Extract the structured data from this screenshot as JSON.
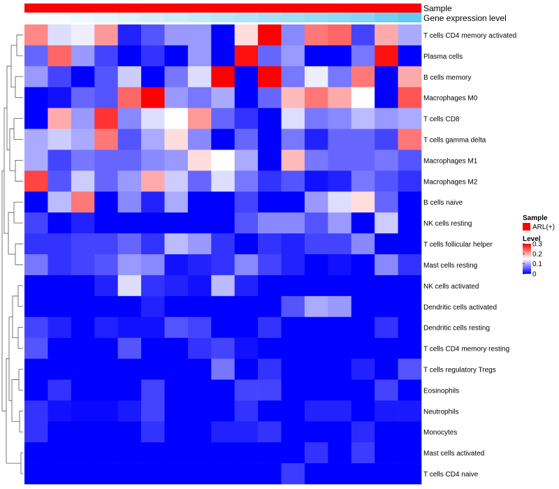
{
  "chart_data": {
    "type": "heatmap",
    "annotation_tracks": [
      "Sample",
      "Gene expression level"
    ],
    "rows": [
      "T cells CD4 memory activated",
      "Plasma cells",
      "B cells memory",
      "Macrophages M0",
      "T cells CD8",
      "T cells gamma delta",
      "Macrophages M1",
      "Macrophages M2",
      "B cells naive",
      "NK cells resting",
      "T cells follicular helper",
      "Mast cells resting",
      "NK cells activated",
      "Dendritic cells activated",
      "Dendritic cells resting",
      "T cells CD4 memory resting",
      "T cells regulatory  Tregs",
      "Eosinophils",
      "Neutrophils",
      "Monocytes",
      "Mast cells activated",
      "T cells CD4 naive"
    ],
    "n_columns": 17,
    "values": [
      [
        0.22,
        0.13,
        0.14,
        0.21,
        0.02,
        0.05,
        0.09,
        0.09,
        0.0,
        0.17,
        0.3,
        0.08,
        0.23,
        0.24,
        0.04,
        0.2,
        0.1
      ],
      [
        0.06,
        0.24,
        0.09,
        0.04,
        0.0,
        0.03,
        0.0,
        0.09,
        0.0,
        0.29,
        0.06,
        0.09,
        0.0,
        0.0,
        0.07,
        0.29,
        0.0
      ],
      [
        0.09,
        0.04,
        0.0,
        0.05,
        0.12,
        0.0,
        0.07,
        0.13,
        0.3,
        0.0,
        0.3,
        0.07,
        0.14,
        0.07,
        0.23,
        0.0,
        0.2
      ],
      [
        0.0,
        0.01,
        0.06,
        0.05,
        0.24,
        0.3,
        0.09,
        0.07,
        0.1,
        0.0,
        0.06,
        0.19,
        0.23,
        0.2,
        0.15,
        0.0,
        0.25
      ],
      [
        0.0,
        0.2,
        0.09,
        0.27,
        0.08,
        0.13,
        0.15,
        0.21,
        0.06,
        0.03,
        0.0,
        0.13,
        0.07,
        0.08,
        0.11,
        0.09,
        0.1
      ],
      [
        0.1,
        0.12,
        0.1,
        0.23,
        0.05,
        0.1,
        0.17,
        0.08,
        0.0,
        0.06,
        0.0,
        0.07,
        0.02,
        0.06,
        0.06,
        0.04,
        0.23
      ],
      [
        0.1,
        0.04,
        0.07,
        0.06,
        0.06,
        0.08,
        0.09,
        0.17,
        0.15,
        0.1,
        0.0,
        0.19,
        0.07,
        0.06,
        0.06,
        0.07,
        0.05
      ],
      [
        0.26,
        0.05,
        0.12,
        0.06,
        0.09,
        0.2,
        0.12,
        0.06,
        0.13,
        0.07,
        0.03,
        0.05,
        0.01,
        0.02,
        0.07,
        0.05,
        0.03
      ],
      [
        0.0,
        0.11,
        0.23,
        0.0,
        0.08,
        0.02,
        0.1,
        0.0,
        0.0,
        0.04,
        0.0,
        0.0,
        0.09,
        0.13,
        0.17,
        0.06,
        0.0
      ],
      [
        0.04,
        0.0,
        0.02,
        0.0,
        0.0,
        0.0,
        0.0,
        0.0,
        0.0,
        0.05,
        0.08,
        0.08,
        0.05,
        0.09,
        0.0,
        0.12,
        0.0
      ],
      [
        0.03,
        0.03,
        0.04,
        0.04,
        0.06,
        0.03,
        0.11,
        0.09,
        0.03,
        0.0,
        0.03,
        0.02,
        0.04,
        0.04,
        0.08,
        0.0,
        0.0
      ],
      [
        0.07,
        0.03,
        0.04,
        0.05,
        0.09,
        0.08,
        0.01,
        0.02,
        0.03,
        0.08,
        0.04,
        0.02,
        0.0,
        0.01,
        0.0,
        0.08,
        0.03
      ],
      [
        0.0,
        0.0,
        0.0,
        0.02,
        0.13,
        0.03,
        0.02,
        0.01,
        0.11,
        0.02,
        0.0,
        0.0,
        0.0,
        0.0,
        0.0,
        0.0,
        0.0
      ],
      [
        0.0,
        0.0,
        0.0,
        0.0,
        0.0,
        0.02,
        0.0,
        0.0,
        0.0,
        0.0,
        0.0,
        0.05,
        0.1,
        0.09,
        0.0,
        0.0,
        0.0
      ],
      [
        0.04,
        0.02,
        0.0,
        0.02,
        0.01,
        0.01,
        0.05,
        0.04,
        0.0,
        0.0,
        0.03,
        0.0,
        0.0,
        0.0,
        0.0,
        0.03,
        0.0
      ],
      [
        0.05,
        0.0,
        0.0,
        0.0,
        0.05,
        0.0,
        0.0,
        0.03,
        0.04,
        0.01,
        0.0,
        0.0,
        0.0,
        0.0,
        0.0,
        0.0,
        0.0
      ],
      [
        0.0,
        0.0,
        0.0,
        0.0,
        0.0,
        0.0,
        0.0,
        0.0,
        0.07,
        0.0,
        0.03,
        0.0,
        0.0,
        0.0,
        0.02,
        0.0,
        0.05
      ],
      [
        0.0,
        0.03,
        0.0,
        0.0,
        0.0,
        0.04,
        0.0,
        0.0,
        0.0,
        0.04,
        0.04,
        0.0,
        0.0,
        0.0,
        0.0,
        0.04,
        0.0
      ],
      [
        0.03,
        0.01,
        0.005,
        0.005,
        0.015,
        0.04,
        0.0,
        0.0,
        0.0,
        0.03,
        0.0,
        0.0,
        0.02,
        0.02,
        0.0,
        0.015,
        0.015
      ],
      [
        0.03,
        0.0,
        0.0,
        0.0,
        0.0,
        0.03,
        0.0,
        0.0,
        0.02,
        0.02,
        0.03,
        0.0,
        0.0,
        0.0,
        0.025,
        0.0,
        0.0
      ],
      [
        0.0,
        0.0,
        0.0,
        0.0,
        0.0,
        0.0,
        0.0,
        0.0,
        0.0,
        0.0,
        0.0,
        0.0,
        0.03,
        0.0,
        0.035,
        0.0,
        0.0
      ],
      [
        0.0,
        0.0,
        0.0,
        0.0,
        0.0,
        0.0,
        0.0,
        0.0,
        0.0,
        0.0,
        0.0,
        0.035,
        0.0,
        0.0,
        0.0,
        0.0,
        0.0
      ]
    ],
    "expression_level": [
      0.02,
      0.05,
      0.1,
      0.15,
      0.2,
      0.25,
      0.3,
      0.35,
      0.4,
      0.45,
      0.5,
      0.55,
      0.6,
      0.65,
      0.7,
      0.8,
      0.9
    ],
    "sample_group": "ARL(+)",
    "legend": {
      "sample_title": "Sample",
      "sample_items": [
        {
          "label": "ARL(+)",
          "color": "#ff0000"
        }
      ],
      "level_title": "Level",
      "level_ticks": [
        0.3,
        0.2,
        0.1,
        0
      ]
    },
    "colorscale": {
      "low": "#0000ff",
      "mid": "#ffffff",
      "high": "#ff0000",
      "range": [
        0,
        0.3
      ]
    },
    "sample_color": "#ff0000",
    "expression_colorscale": {
      "low": "#ffffff",
      "high": "#4fc3f0"
    }
  }
}
